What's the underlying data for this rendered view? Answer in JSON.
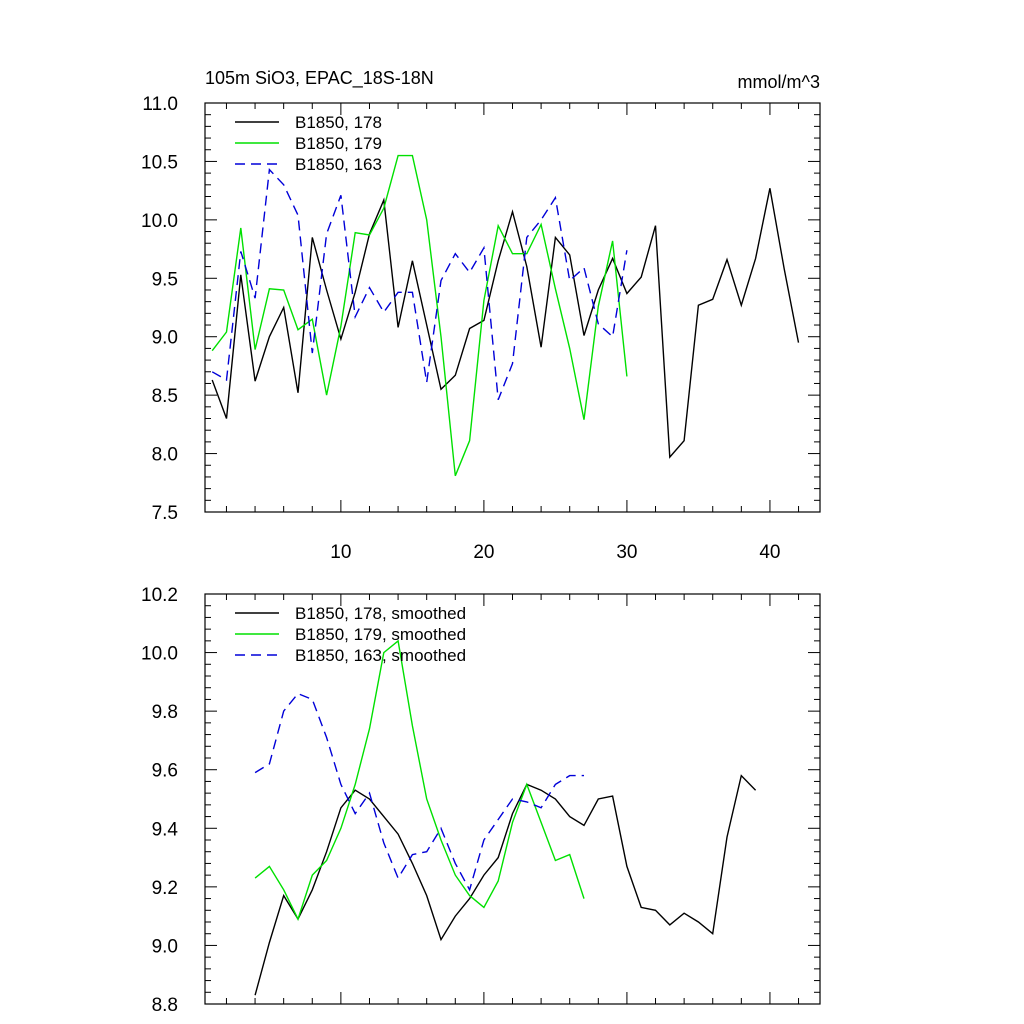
{
  "chart_data": [
    {
      "type": "line",
      "title": "105m SiO3, EPAC_18S-18N",
      "units_label": "mmol/m^3",
      "xlabel": "",
      "ylabel": "",
      "xlim": [
        0.5,
        43.5
      ],
      "ylim": [
        7.5,
        11.0
      ],
      "x_ticks": [
        10,
        20,
        30,
        40
      ],
      "y_ticks": [
        7.5,
        8.0,
        8.5,
        9.0,
        9.5,
        10.0,
        10.5,
        11.0
      ],
      "y_tick_labels": [
        "7.5",
        "8.0",
        "8.5",
        "9.0",
        "9.5",
        "10.0",
        "10.5",
        "11.0"
      ],
      "series": [
        {
          "name": "B1850, 178",
          "color": "#000000",
          "dashed": false,
          "x": [
            1,
            2,
            3,
            4,
            5,
            6,
            7,
            8,
            9,
            10,
            11,
            12,
            13,
            14,
            15,
            16,
            17,
            18,
            19,
            20,
            21,
            22,
            23,
            24,
            25,
            26,
            27,
            28,
            29,
            30,
            31,
            32,
            33,
            34,
            35,
            36,
            37,
            38,
            39,
            40,
            41,
            42
          ],
          "values": [
            8.63,
            8.3,
            9.53,
            8.62,
            9.0,
            9.25,
            8.52,
            9.85,
            9.4,
            8.98,
            9.38,
            9.88,
            10.17,
            9.08,
            9.65,
            9.1,
            8.55,
            8.67,
            9.07,
            9.14,
            9.65,
            10.07,
            9.6,
            8.91,
            9.85,
            9.7,
            9.01,
            9.4,
            9.67,
            9.37,
            9.51,
            9.95,
            7.97,
            8.11,
            9.27,
            9.32,
            9.66,
            9.27,
            9.67,
            10.27,
            9.58,
            8.95
          ]
        },
        {
          "name": "B1850, 179",
          "color": "#00e000",
          "dashed": false,
          "x": [
            1,
            2,
            3,
            4,
            5,
            6,
            7,
            8,
            9,
            10,
            11,
            12,
            13,
            14,
            15,
            16,
            17,
            18,
            19,
            20,
            21,
            22,
            23,
            24,
            25,
            26,
            27,
            28,
            29,
            30
          ],
          "values": [
            8.88,
            9.04,
            9.93,
            8.89,
            9.41,
            9.4,
            9.06,
            9.15,
            8.5,
            9.09,
            9.89,
            9.87,
            10.1,
            10.55,
            10.55,
            10.0,
            9.0,
            7.81,
            8.11,
            9.31,
            9.95,
            9.71,
            9.71,
            9.96,
            9.41,
            8.9,
            8.29,
            9.26,
            9.82,
            8.66
          ]
        },
        {
          "name": "B1850, 163",
          "color": "#0000d8",
          "dashed": true,
          "x": [
            1,
            2,
            3,
            4,
            5,
            6,
            7,
            8,
            9,
            10,
            11,
            12,
            13,
            14,
            15,
            16,
            17,
            18,
            19,
            20,
            21,
            22,
            23,
            24,
            25,
            26,
            27,
            28,
            29,
            30
          ],
          "values": [
            8.7,
            8.63,
            9.73,
            9.33,
            10.43,
            10.3,
            10.04,
            8.86,
            9.88,
            10.21,
            9.17,
            9.42,
            9.21,
            9.38,
            9.38,
            8.61,
            9.48,
            9.71,
            9.55,
            9.76,
            8.46,
            8.77,
            9.85,
            10.0,
            10.19,
            9.48,
            9.59,
            9.11,
            9.0,
            9.74
          ]
        }
      ]
    },
    {
      "type": "line",
      "title": "",
      "xlabel": "",
      "ylabel": "",
      "xlim": [
        0.5,
        43.5
      ],
      "ylim": [
        8.8,
        10.2
      ],
      "x_ticks": [
        10,
        20,
        30,
        40
      ],
      "y_ticks": [
        8.8,
        9.0,
        9.2,
        9.4,
        9.6,
        9.8,
        10.0,
        10.2
      ],
      "y_tick_labels": [
        "8.8",
        "9.0",
        "9.2",
        "9.4",
        "9.6",
        "9.8",
        "10.0",
        "10.2"
      ],
      "series": [
        {
          "name": "B1850, 178, smoothed",
          "color": "#000000",
          "dashed": false,
          "x": [
            4,
            5,
            6,
            7,
            8,
            9,
            10,
            11,
            12,
            13,
            14,
            15,
            16,
            17,
            18,
            19,
            20,
            21,
            22,
            23,
            24,
            25,
            26,
            27,
            28,
            29,
            30,
            31,
            32,
            33,
            34,
            35,
            36,
            37,
            38,
            39
          ],
          "values": [
            8.83,
            9.01,
            9.17,
            9.09,
            9.19,
            9.32,
            9.47,
            9.53,
            9.5,
            9.44,
            9.38,
            9.28,
            9.17,
            9.02,
            9.1,
            9.16,
            9.24,
            9.3,
            9.45,
            9.55,
            9.53,
            9.5,
            9.44,
            9.41,
            9.5,
            9.51,
            9.27,
            9.13,
            9.12,
            9.07,
            9.11,
            9.08,
            9.04,
            9.37,
            9.58,
            9.53
          ]
        },
        {
          "name": "B1850, 179, smoothed",
          "color": "#00e000",
          "dashed": false,
          "x": [
            4,
            5,
            6,
            7,
            8,
            9,
            10,
            11,
            12,
            13,
            14,
            15,
            16,
            17,
            18,
            19,
            20,
            21,
            22,
            23,
            24,
            25,
            26,
            27
          ],
          "values": [
            9.23,
            9.27,
            9.19,
            9.09,
            9.24,
            9.29,
            9.4,
            9.55,
            9.74,
            10.0,
            10.04,
            9.75,
            9.5,
            9.36,
            9.24,
            9.17,
            9.13,
            9.22,
            9.42,
            9.55,
            9.42,
            9.29,
            9.31,
            9.16
          ]
        },
        {
          "name": "B1850, 163, smoothed",
          "color": "#0000d8",
          "dashed": true,
          "x": [
            4,
            5,
            6,
            7,
            8,
            9,
            10,
            11,
            12,
            13,
            14,
            15,
            16,
            17,
            18,
            19,
            20,
            21,
            22,
            23,
            24,
            25,
            26,
            27
          ],
          "values": [
            9.59,
            9.62,
            9.8,
            9.86,
            9.84,
            9.71,
            9.55,
            9.45,
            9.52,
            9.35,
            9.23,
            9.31,
            9.32,
            9.4,
            9.28,
            9.19,
            9.36,
            9.43,
            9.5,
            9.49,
            9.47,
            9.55,
            9.58,
            9.58
          ]
        }
      ]
    }
  ]
}
